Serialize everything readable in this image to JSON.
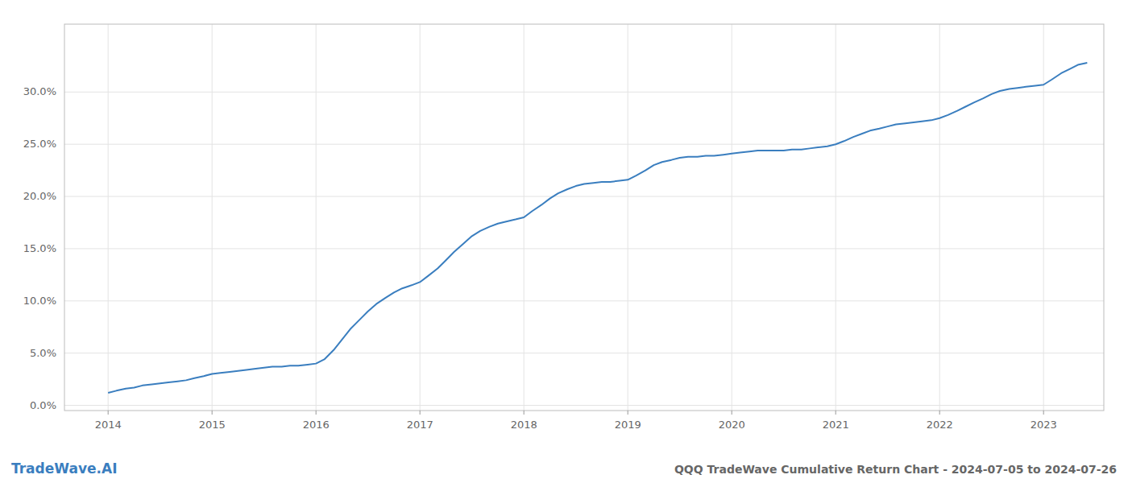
{
  "chart_data": {
    "type": "line",
    "title": "QQQ TradeWave Cumulative Return Chart - 2024-07-05 to 2024-07-26",
    "annotations": [
      "TradeWave.AI"
    ],
    "color": "#3a7ebf",
    "grid": true,
    "x": [
      2014.0,
      2014.08,
      2014.17,
      2014.25,
      2014.33,
      2014.42,
      2014.5,
      2014.58,
      2014.67,
      2014.75,
      2014.83,
      2014.92,
      2015.0,
      2015.08,
      2015.17,
      2015.25,
      2015.33,
      2015.42,
      2015.5,
      2015.58,
      2015.67,
      2015.75,
      2015.83,
      2015.92,
      2016.0,
      2016.08,
      2016.17,
      2016.25,
      2016.33,
      2016.42,
      2016.5,
      2016.58,
      2016.67,
      2016.75,
      2016.83,
      2016.92,
      2017.0,
      2017.08,
      2017.17,
      2017.25,
      2017.33,
      2017.42,
      2017.5,
      2017.58,
      2017.67,
      2017.75,
      2017.83,
      2017.92,
      2018.0,
      2018.08,
      2018.17,
      2018.25,
      2018.33,
      2018.42,
      2018.5,
      2018.58,
      2018.67,
      2018.75,
      2018.83,
      2018.92,
      2019.0,
      2019.08,
      2019.17,
      2019.25,
      2019.33,
      2019.42,
      2019.5,
      2019.58,
      2019.67,
      2019.75,
      2019.83,
      2019.92,
      2020.0,
      2020.08,
      2020.17,
      2020.25,
      2020.33,
      2020.42,
      2020.5,
      2020.58,
      2020.67,
      2020.75,
      2020.83,
      2020.92,
      2021.0,
      2021.08,
      2021.17,
      2021.25,
      2021.33,
      2021.42,
      2021.5,
      2021.58,
      2021.67,
      2021.75,
      2021.83,
      2021.92,
      2022.0,
      2022.08,
      2022.17,
      2022.25,
      2022.33,
      2022.42,
      2022.5,
      2022.58,
      2022.67,
      2022.75,
      2022.83,
      2022.92,
      2023.0,
      2023.08,
      2023.17,
      2023.25,
      2023.33,
      2023.42
    ],
    "values": [
      0.012,
      0.014,
      0.016,
      0.017,
      0.019,
      0.02,
      0.021,
      0.022,
      0.023,
      0.024,
      0.026,
      0.028,
      0.03,
      0.031,
      0.032,
      0.033,
      0.034,
      0.035,
      0.036,
      0.037,
      0.037,
      0.038,
      0.038,
      0.039,
      0.04,
      0.044,
      0.053,
      0.063,
      0.073,
      0.082,
      0.09,
      0.097,
      0.103,
      0.108,
      0.112,
      0.115,
      0.118,
      0.124,
      0.131,
      0.139,
      0.147,
      0.155,
      0.162,
      0.167,
      0.171,
      0.174,
      0.176,
      0.178,
      0.18,
      0.186,
      0.192,
      0.198,
      0.203,
      0.207,
      0.21,
      0.212,
      0.213,
      0.214,
      0.214,
      0.215,
      0.216,
      0.22,
      0.225,
      0.23,
      0.233,
      0.235,
      0.237,
      0.238,
      0.238,
      0.239,
      0.239,
      0.24,
      0.241,
      0.242,
      0.243,
      0.244,
      0.244,
      0.244,
      0.244,
      0.245,
      0.245,
      0.246,
      0.247,
      0.248,
      0.25,
      0.253,
      0.257,
      0.26,
      0.263,
      0.265,
      0.267,
      0.269,
      0.27,
      0.271,
      0.272,
      0.273,
      0.275,
      0.278,
      0.282,
      0.286,
      0.29,
      0.294,
      0.298,
      0.301,
      0.303,
      0.304,
      0.305,
      0.306,
      0.307,
      0.312,
      0.318,
      0.322,
      0.326,
      0.328
    ],
    "xlim": [
      2013.58,
      2023.58
    ],
    "xticks": [
      2014,
      2015,
      2016,
      2017,
      2018,
      2019,
      2020,
      2021,
      2022,
      2023
    ],
    "ylim": [
      -0.005,
      0.365
    ],
    "yticks": [
      {
        "value": 0.0,
        "label": "0.0%"
      },
      {
        "value": 0.05,
        "label": "5.0%"
      },
      {
        "value": 0.1,
        "label": "10.0%"
      },
      {
        "value": 0.15,
        "label": "15.0%"
      },
      {
        "value": 0.2,
        "label": "20.0%"
      },
      {
        "value": 0.25,
        "label": "25.0%"
      },
      {
        "value": 0.3,
        "label": "30.0%"
      }
    ]
  }
}
